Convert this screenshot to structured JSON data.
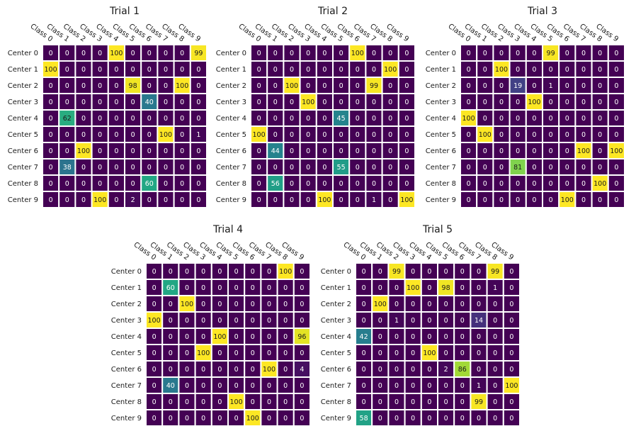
{
  "chart_data": [
    {
      "type": "heatmap",
      "title": "Trial 1",
      "xticklabels": [
        "Class 0",
        "Class 1",
        "Class 2",
        "Class 3",
        "Class 4",
        "Class 5",
        "Class 6",
        "Class 7",
        "Class 8",
        "Class 9"
      ],
      "yticklabels": [
        "Center 0",
        "Center 1",
        "Center 2",
        "Center 3",
        "Center 4",
        "Center 5",
        "Center 6",
        "Center 7",
        "Center 8",
        "Center 9"
      ],
      "values": [
        [
          0,
          0,
          0,
          0,
          100,
          0,
          0,
          0,
          0,
          99
        ],
        [
          100,
          0,
          0,
          0,
          0,
          0,
          0,
          0,
          0,
          0
        ],
        [
          0,
          0,
          0,
          0,
          0,
          98,
          0,
          0,
          100,
          0
        ],
        [
          0,
          0,
          0,
          0,
          0,
          0,
          40,
          0,
          0,
          0
        ],
        [
          0,
          62,
          0,
          0,
          0,
          0,
          0,
          0,
          0,
          0
        ],
        [
          0,
          0,
          0,
          0,
          0,
          0,
          0,
          100,
          0,
          1
        ],
        [
          0,
          0,
          100,
          0,
          0,
          0,
          0,
          0,
          0,
          0
        ],
        [
          0,
          38,
          0,
          0,
          0,
          0,
          0,
          0,
          0,
          0
        ],
        [
          0,
          0,
          0,
          0,
          0,
          0,
          60,
          0,
          0,
          0
        ],
        [
          0,
          0,
          0,
          100,
          0,
          2,
          0,
          0,
          0,
          0
        ]
      ],
      "vmin": 0,
      "vmax": 100,
      "colormap": "viridis",
      "annotated": true,
      "xtick_position": "top"
    },
    {
      "type": "heatmap",
      "title": "Trial 2",
      "xticklabels": [
        "Class 0",
        "Class 1",
        "Class 2",
        "Class 3",
        "Class 4",
        "Class 5",
        "Class 6",
        "Class 7",
        "Class 8",
        "Class 9"
      ],
      "yticklabels": [
        "Center 0",
        "Center 1",
        "Center 2",
        "Center 3",
        "Center 4",
        "Center 5",
        "Center 6",
        "Center 7",
        "Center 8",
        "Center 9"
      ],
      "values": [
        [
          0,
          0,
          0,
          0,
          0,
          0,
          100,
          0,
          0,
          0
        ],
        [
          0,
          0,
          0,
          0,
          0,
          0,
          0,
          0,
          100,
          0
        ],
        [
          0,
          0,
          100,
          0,
          0,
          0,
          0,
          99,
          0,
          0
        ],
        [
          0,
          0,
          0,
          100,
          0,
          0,
          0,
          0,
          0,
          0
        ],
        [
          0,
          0,
          0,
          0,
          0,
          45,
          0,
          0,
          0,
          0
        ],
        [
          100,
          0,
          0,
          0,
          0,
          0,
          0,
          0,
          0,
          0
        ],
        [
          0,
          44,
          0,
          0,
          0,
          0,
          0,
          0,
          0,
          0
        ],
        [
          0,
          0,
          0,
          0,
          0,
          55,
          0,
          0,
          0,
          0
        ],
        [
          0,
          56,
          0,
          0,
          0,
          0,
          0,
          0,
          0,
          0
        ],
        [
          0,
          0,
          0,
          0,
          100,
          0,
          0,
          1,
          0,
          100
        ]
      ],
      "vmin": 0,
      "vmax": 100,
      "colormap": "viridis",
      "annotated": true,
      "xtick_position": "top"
    },
    {
      "type": "heatmap",
      "title": "Trial 3",
      "xticklabels": [
        "Class 0",
        "Class 1",
        "Class 2",
        "Class 3",
        "Class 4",
        "Class 5",
        "Class 6",
        "Class 7",
        "Class 8",
        "Class 9"
      ],
      "yticklabels": [
        "Center 0",
        "Center 1",
        "Center 2",
        "Center 3",
        "Center 4",
        "Center 5",
        "Center 6",
        "Center 7",
        "Center 8",
        "Center 9"
      ],
      "values": [
        [
          0,
          0,
          0,
          0,
          0,
          99,
          0,
          0,
          0,
          0
        ],
        [
          0,
          0,
          100,
          0,
          0,
          0,
          0,
          0,
          0,
          0
        ],
        [
          0,
          0,
          0,
          19,
          0,
          1,
          0,
          0,
          0,
          0
        ],
        [
          0,
          0,
          0,
          0,
          100,
          0,
          0,
          0,
          0,
          0
        ],
        [
          100,
          0,
          0,
          0,
          0,
          0,
          0,
          0,
          0,
          0
        ],
        [
          0,
          100,
          0,
          0,
          0,
          0,
          0,
          0,
          0,
          0
        ],
        [
          0,
          0,
          0,
          0,
          0,
          0,
          0,
          100,
          0,
          100
        ],
        [
          0,
          0,
          0,
          81,
          0,
          0,
          0,
          0,
          0,
          0
        ],
        [
          0,
          0,
          0,
          0,
          0,
          0,
          0,
          0,
          100,
          0
        ],
        [
          0,
          0,
          0,
          0,
          0,
          0,
          100,
          0,
          0,
          0
        ]
      ],
      "vmin": 0,
      "vmax": 100,
      "colormap": "viridis",
      "annotated": true,
      "xtick_position": "top"
    },
    {
      "type": "heatmap",
      "title": "Trial 4",
      "xticklabels": [
        "Class 0",
        "Class 1",
        "Class 2",
        "Class 3",
        "Class 4",
        "Class 5",
        "Class 6",
        "Class 7",
        "Class 8",
        "Class 9"
      ],
      "yticklabels": [
        "Center 0",
        "Center 1",
        "Center 2",
        "Center 3",
        "Center 4",
        "Center 5",
        "Center 6",
        "Center 7",
        "Center 8",
        "Center 9"
      ],
      "values": [
        [
          0,
          0,
          0,
          0,
          0,
          0,
          0,
          0,
          100,
          0
        ],
        [
          0,
          60,
          0,
          0,
          0,
          0,
          0,
          0,
          0,
          0
        ],
        [
          0,
          0,
          100,
          0,
          0,
          0,
          0,
          0,
          0,
          0
        ],
        [
          100,
          0,
          0,
          0,
          0,
          0,
          0,
          0,
          0,
          0
        ],
        [
          0,
          0,
          0,
          0,
          100,
          0,
          0,
          0,
          0,
          96
        ],
        [
          0,
          0,
          0,
          100,
          0,
          0,
          0,
          0,
          0,
          0
        ],
        [
          0,
          0,
          0,
          0,
          0,
          0,
          0,
          100,
          0,
          4
        ],
        [
          0,
          40,
          0,
          0,
          0,
          0,
          0,
          0,
          0,
          0
        ],
        [
          0,
          0,
          0,
          0,
          0,
          100,
          0,
          0,
          0,
          0
        ],
        [
          0,
          0,
          0,
          0,
          0,
          0,
          100,
          0,
          0,
          0
        ]
      ],
      "vmin": 0,
      "vmax": 100,
      "colormap": "viridis",
      "annotated": true,
      "xtick_position": "top"
    },
    {
      "type": "heatmap",
      "title": "Trial 5",
      "xticklabels": [
        "Class 0",
        "Class 1",
        "Class 2",
        "Class 3",
        "Class 4",
        "Class 5",
        "Class 6",
        "Class 7",
        "Class 8",
        "Class 9"
      ],
      "yticklabels": [
        "Center 0",
        "Center 1",
        "Center 2",
        "Center 3",
        "Center 4",
        "Center 5",
        "Center 6",
        "Center 7",
        "Center 8",
        "Center 9"
      ],
      "values": [
        [
          0,
          0,
          99,
          0,
          0,
          0,
          0,
          0,
          99,
          0
        ],
        [
          0,
          0,
          0,
          100,
          0,
          98,
          0,
          0,
          1,
          0
        ],
        [
          0,
          100,
          0,
          0,
          0,
          0,
          0,
          0,
          0,
          0
        ],
        [
          0,
          0,
          1,
          0,
          0,
          0,
          0,
          14,
          0,
          0
        ],
        [
          42,
          0,
          0,
          0,
          0,
          0,
          0,
          0,
          0,
          0
        ],
        [
          0,
          0,
          0,
          0,
          100,
          0,
          0,
          0,
          0,
          0
        ],
        [
          0,
          0,
          0,
          0,
          0,
          2,
          86,
          0,
          0,
          0
        ],
        [
          0,
          0,
          0,
          0,
          0,
          0,
          0,
          1,
          0,
          100
        ],
        [
          0,
          0,
          0,
          0,
          0,
          0,
          0,
          99,
          0,
          0
        ],
        [
          58,
          0,
          0,
          0,
          0,
          0,
          0,
          0,
          0,
          0
        ]
      ],
      "vmin": 0,
      "vmax": 100,
      "colormap": "viridis",
      "annotated": true,
      "xtick_position": "top"
    }
  ]
}
